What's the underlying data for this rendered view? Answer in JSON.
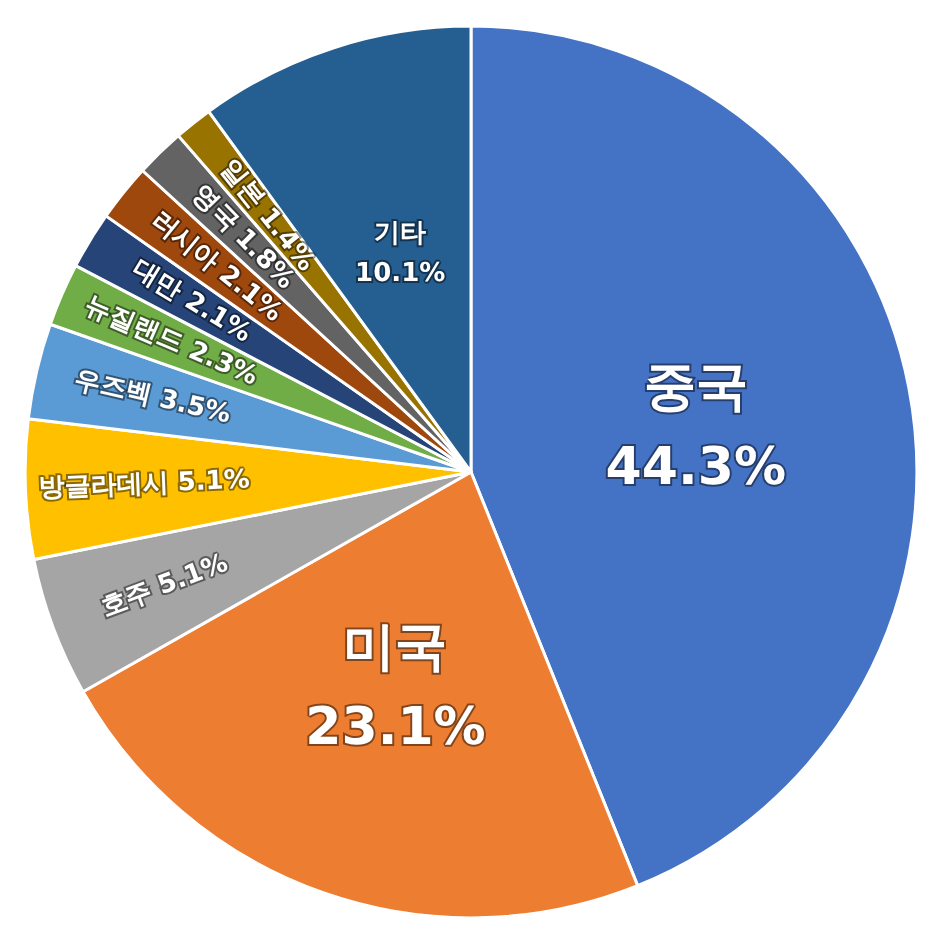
{
  "chart_data": {
    "type": "pie",
    "categories": [
      "중국",
      "미국",
      "호주",
      "방글라데시",
      "우즈벡",
      "뉴질랜드",
      "대만",
      "러시아",
      "영국",
      "일본",
      "기타"
    ],
    "values": [
      44.3,
      23.1,
      5.1,
      5.1,
      3.5,
      2.3,
      2.1,
      2.1,
      1.8,
      1.4,
      10.1
    ],
    "colors": [
      "#4472c4",
      "#ed7d31",
      "#a5a5a5",
      "#ffc000",
      "#5b9bd5",
      "#70ad47",
      "#264478",
      "#9e480e",
      "#636363",
      "#997300",
      "#255e91"
    ],
    "value_labels": [
      "44.3%",
      "23.1%",
      "5.1%",
      "5.1%",
      "3.5%",
      "2.3%",
      "2.1%",
      "2.1%",
      "1.8%",
      "1.4%",
      "10.1%"
    ],
    "legend": false
  }
}
